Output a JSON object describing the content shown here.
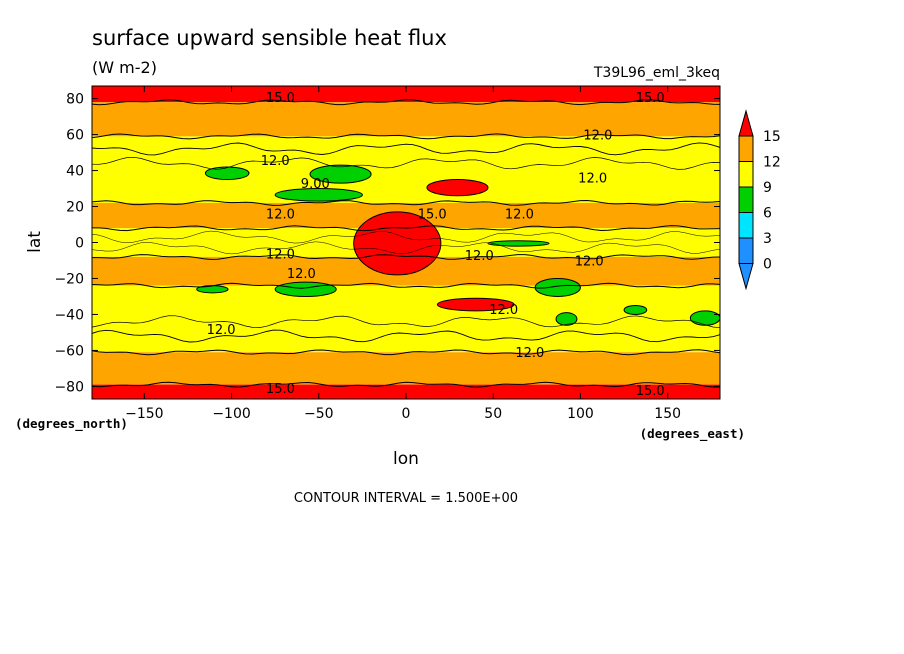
{
  "chart_data": {
    "type": "heatmap",
    "subtype": "filled-contour-map",
    "title": "surface upward sensible heat flux",
    "units": "(W m-2)",
    "experiment": "T39L96_eml_3keq",
    "xlabel": "lon",
    "ylabel": "lat",
    "x_units": "(degrees_east)",
    "y_units": "(degrees_north)",
    "xlim": [
      -180,
      180
    ],
    "ylim": [
      -87,
      87
    ],
    "x_ticks": [
      -150,
      -100,
      -50,
      0,
      50,
      100,
      150
    ],
    "x_tick_labels": [
      "−150",
      "−100",
      "−50",
      "0",
      "50",
      "100",
      "150"
    ],
    "y_ticks": [
      80,
      60,
      40,
      20,
      0,
      -20,
      -40,
      -60,
      -80
    ],
    "y_tick_labels": [
      "80",
      "60",
      "40",
      "20",
      "0",
      "−20",
      "−40",
      "−60",
      "−80"
    ],
    "contour_interval_text": "CONTOUR INTERVAL = 1.500E+00",
    "colorbar": {
      "levels": [
        0,
        3,
        6,
        9,
        12,
        15
      ],
      "labels": [
        "0",
        "3",
        "6",
        "9",
        "12",
        "15"
      ],
      "colors": [
        "#1e90ff",
        "#00e5ff",
        "#00d000",
        "#ffff00",
        "#ffa500",
        "#ff0000"
      ]
    },
    "zonal_bands": [
      {
        "lat_from": 87,
        "lat_to": 78,
        "level": "15+",
        "color": "#ff0000"
      },
      {
        "lat_from": 78,
        "lat_to": 59,
        "level": "12-15",
        "color": "#ffa500"
      },
      {
        "lat_from": 59,
        "lat_to": 22,
        "level": "9-12",
        "color": "#ffff00"
      },
      {
        "lat_from": 22,
        "lat_to": 8,
        "level": "12-15",
        "color": "#ffa500"
      },
      {
        "lat_from": 8,
        "lat_to": -8,
        "level": "9-12",
        "color": "#ffff00"
      },
      {
        "lat_from": -8,
        "lat_to": -24,
        "level": "12-15",
        "color": "#ffa500"
      },
      {
        "lat_from": -24,
        "lat_to": -61,
        "level": "9-12",
        "color": "#ffff00"
      },
      {
        "lat_from": -61,
        "lat_to": -79,
        "level": "12-15",
        "color": "#ffa500"
      },
      {
        "lat_from": -79,
        "lat_to": -87,
        "level": "15+",
        "color": "#ff0000"
      }
    ],
    "features": [
      {
        "kind": "max",
        "lon_range": [
          -30,
          20
        ],
        "lat_range": [
          -18,
          17
        ],
        "level": "15+",
        "color": "#ff0000"
      },
      {
        "kind": "max",
        "lon_range": [
          12,
          47
        ],
        "lat_range": [
          26,
          35
        ],
        "level": "15+",
        "color": "#ff0000"
      },
      {
        "kind": "max",
        "lon_range": [
          18,
          62
        ],
        "lat_range": [
          -38,
          -31
        ],
        "level": "15+",
        "color": "#ff0000"
      },
      {
        "kind": "min",
        "lon_range": [
          -115,
          -90
        ],
        "lat_range": [
          35,
          42
        ],
        "level": "6-9",
        "color": "#00d000"
      },
      {
        "kind": "min",
        "lon_range": [
          -55,
          -20
        ],
        "lat_range": [
          33,
          43
        ],
        "level": "6-9",
        "color": "#00d000"
      },
      {
        "kind": "min",
        "lon_range": [
          -75,
          -25
        ],
        "lat_range": [
          23,
          30
        ],
        "level": "6-9",
        "color": "#00d000"
      },
      {
        "kind": "min",
        "lon_range": [
          47,
          82
        ],
        "lat_range": [
          -2,
          1
        ],
        "level": "6-9",
        "color": "#00d000"
      },
      {
        "kind": "min",
        "lon_range": [
          -75,
          -40
        ],
        "lat_range": [
          -30,
          -22
        ],
        "level": "6-9",
        "color": "#00d000"
      },
      {
        "kind": "min",
        "lon_range": [
          -120,
          -102
        ],
        "lat_range": [
          -28,
          -24
        ],
        "level": "6-9",
        "color": "#00d000"
      },
      {
        "kind": "min",
        "lon_range": [
          74,
          100
        ],
        "lat_range": [
          -30,
          -20
        ],
        "level": "6-9",
        "color": "#00d000"
      },
      {
        "kind": "min",
        "lon_range": [
          163,
          180
        ],
        "lat_range": [
          -46,
          -38
        ],
        "level": "6-9",
        "color": "#00d000"
      },
      {
        "kind": "min",
        "lon_range": [
          86,
          98
        ],
        "lat_range": [
          -46,
          -39
        ],
        "level": "6-9",
        "color": "#00d000"
      },
      {
        "kind": "min",
        "lon_range": [
          125,
          138
        ],
        "lat_range": [
          -40,
          -35
        ],
        "level": "6-9",
        "color": "#00d000"
      }
    ],
    "contour_labels": [
      {
        "text": "15.0",
        "lon": -72,
        "lat": 81
      },
      {
        "text": "15.0",
        "lon": 140,
        "lat": 81
      },
      {
        "text": "12.0",
        "lon": 110,
        "lat": 60
      },
      {
        "text": "12.0",
        "lon": -75,
        "lat": 46
      },
      {
        "text": "12.0",
        "lon": 107,
        "lat": 36
      },
      {
        "text": "9.00",
        "lon": -52,
        "lat": 33
      },
      {
        "text": "12.0",
        "lon": -72,
        "lat": 16
      },
      {
        "text": "15.0",
        "lon": 15,
        "lat": 16
      },
      {
        "text": "12.0",
        "lon": 65,
        "lat": 16
      },
      {
        "text": "12.0",
        "lon": -72,
        "lat": -6
      },
      {
        "text": "12.0",
        "lon": 42,
        "lat": -7
      },
      {
        "text": "12.0",
        "lon": 105,
        "lat": -10
      },
      {
        "text": "12.0",
        "lon": -60,
        "lat": -17
      },
      {
        "text": "12.0",
        "lon": 56,
        "lat": -37
      },
      {
        "text": "12.0",
        "lon": -106,
        "lat": -48
      },
      {
        "text": "12.0",
        "lon": 71,
        "lat": -61
      },
      {
        "text": "15.0",
        "lon": -72,
        "lat": -81
      },
      {
        "text": "15.0",
        "lon": 140,
        "lat": -82
      }
    ]
  }
}
